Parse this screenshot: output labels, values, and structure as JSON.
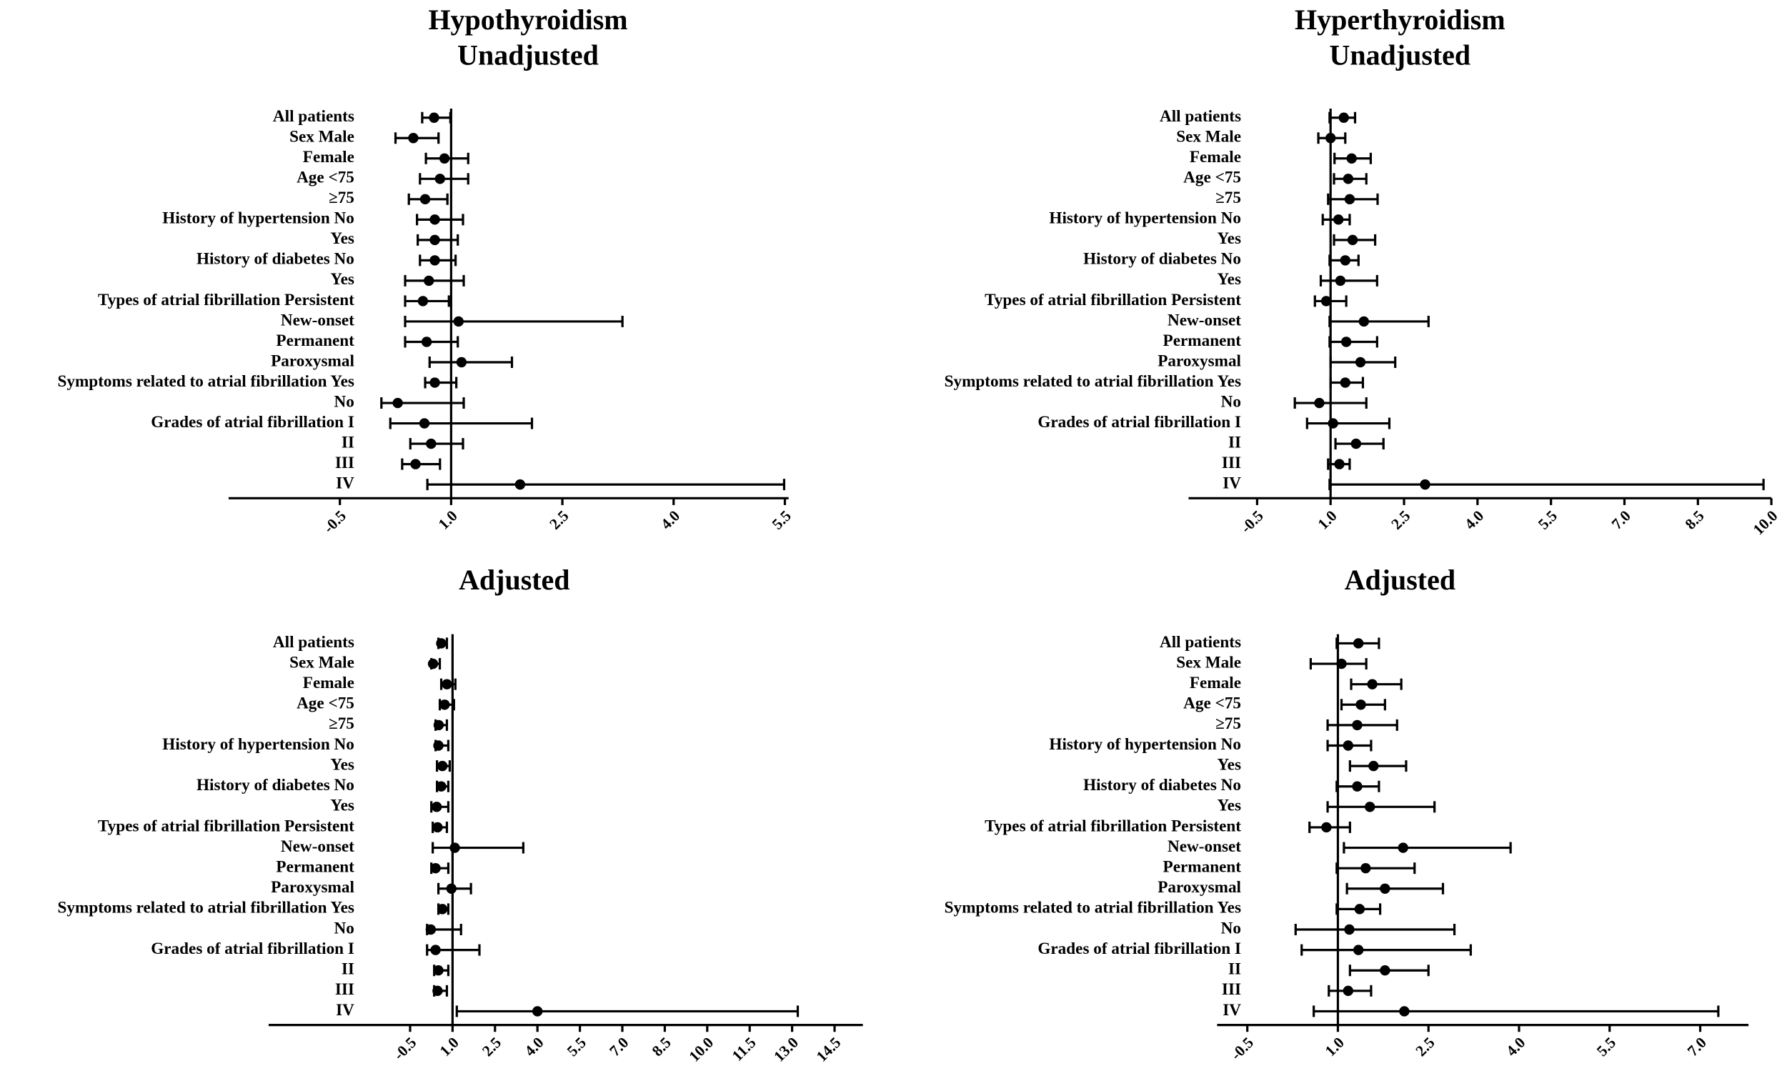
{
  "chart_data": [
    {
      "type": "forest",
      "title": "Hypothyroidism",
      "subtitle": "Unadjusted",
      "color": "#000000",
      "reference_line": 1,
      "categories": [
        "All patients",
        "Sex Male",
        "Female",
        "Age <75",
        "≥75",
        "History of hypertension No",
        "Yes",
        "History of diabetes No",
        "Yes",
        "Types of atrial fibrillation Persistent",
        "New-onset",
        "Permanent",
        "Paroxysmal",
        "Symptoms related to atrial fibrillation Yes",
        "No",
        "Grades of atrial fibrillation I",
        "II",
        "III",
        "IV"
      ],
      "values": [
        0.77,
        0.49,
        0.91,
        0.85,
        0.65,
        0.78,
        0.78,
        0.78,
        0.7,
        0.62,
        1.1,
        0.67,
        1.14,
        0.78,
        0.28,
        0.64,
        0.73,
        0.52,
        1.93
      ],
      "lower": [
        0.61,
        0.25,
        0.66,
        0.58,
        0.43,
        0.54,
        0.55,
        0.58,
        0.38,
        0.38,
        0.38,
        0.38,
        0.71,
        0.65,
        0.06,
        0.18,
        0.45,
        0.34,
        0.68
      ],
      "upper": [
        0.99,
        0.83,
        1.23,
        1.23,
        0.95,
        1.16,
        1.09,
        1.06,
        1.17,
        0.97,
        3.31,
        1.09,
        1.82,
        1.07,
        1.17,
        2.09,
        1.16,
        0.85,
        5.49
      ],
      "xlim": [
        -2,
        5.55
      ],
      "xticks": [
        -0.5,
        {
          "value": 1,
          "label": "1.0"
        },
        2.5,
        {
          "value": 4,
          "label": "4.0"
        },
        5.5
      ]
    },
    {
      "type": "forest",
      "title": "Hyperthyroidism",
      "subtitle": "Unadjusted",
      "color": "#000000",
      "reference_line": 1,
      "categories": [
        "All patients",
        "Sex Male",
        "Female",
        "Age <75",
        "≥75",
        "History of hypertension No",
        "Yes",
        "History of diabetes No",
        "Yes",
        "Types of atrial fibrillation Persistent",
        "New-onset",
        "Permanent",
        "Paroxysmal",
        "Symptoms related to atrial fibrillation Yes",
        "No",
        "Grades of atrial fibrillation I",
        "II",
        "III",
        "IV"
      ],
      "values": [
        1.27,
        1.0,
        1.43,
        1.36,
        1.39,
        1.16,
        1.45,
        1.3,
        1.2,
        0.91,
        1.68,
        1.32,
        1.61,
        1.3,
        0.77,
        1.05,
        1.52,
        1.18,
        2.93
      ],
      "lower": [
        0.98,
        0.75,
        1.08,
        1.07,
        0.95,
        0.84,
        1.07,
        0.98,
        0.8,
        0.68,
        0.98,
        0.98,
        1.0,
        1.0,
        0.27,
        0.52,
        1.1,
        0.95,
        0.98
      ],
      "upper": [
        1.5,
        1.3,
        1.82,
        1.73,
        1.96,
        1.39,
        1.91,
        1.57,
        1.95,
        1.32,
        3.0,
        1.95,
        2.32,
        1.66,
        1.73,
        2.2,
        2.08,
        1.39,
        9.84
      ],
      "xlim": [
        -1.9,
        10
      ],
      "xticks": [
        -0.5,
        {
          "value": 1,
          "label": "1.0"
        },
        2.5,
        {
          "value": 4,
          "label": "4.0"
        },
        5.5,
        {
          "value": 7,
          "label": "7.0"
        },
        8.5,
        {
          "value": 10,
          "label": "10.0"
        }
      ]
    },
    {
      "type": "forest",
      "title": "Adjusted",
      "color": "#000000",
      "reference_line": 1,
      "categories": [
        "All patients",
        "Sex Male",
        "Female",
        "Age <75",
        "≥75",
        "History of hypertension No",
        "Yes",
        "History of diabetes No",
        "Yes",
        "Types of atrial fibrillation Persistent",
        "New-onset",
        "Permanent",
        "Paroxysmal",
        "Symptoms related to atrial fibrillation Yes",
        "No",
        "Grades of atrial fibrillation I",
        "II",
        "III",
        "IV"
      ],
      "values": [
        0.6,
        0.31,
        0.8,
        0.72,
        0.51,
        0.5,
        0.64,
        0.6,
        0.44,
        0.47,
        1.08,
        0.4,
        0.96,
        0.64,
        0.23,
        0.4,
        0.5,
        0.47,
        4.0
      ],
      "lower": [
        0.5,
        0.25,
        0.6,
        0.55,
        0.4,
        0.4,
        0.45,
        0.45,
        0.25,
        0.3,
        0.3,
        0.25,
        0.5,
        0.5,
        0.1,
        0.1,
        0.35,
        0.35,
        1.15
      ],
      "upper": [
        0.8,
        0.55,
        1.1,
        1.05,
        0.8,
        0.85,
        0.9,
        0.85,
        0.85,
        0.8,
        3.5,
        0.85,
        1.65,
        0.85,
        1.3,
        1.95,
        0.85,
        0.8,
        13.2
      ],
      "xlim": [
        -5.5,
        15.5
      ],
      "xticks": [
        -0.5,
        {
          "value": 1,
          "label": "1.0"
        },
        2.5,
        {
          "value": 4,
          "label": "4.0"
        },
        5.5,
        {
          "value": 7,
          "label": "7.0"
        },
        8.5,
        {
          "value": 10,
          "label": "10.0"
        },
        11.5,
        {
          "value": 13,
          "label": "13.0"
        },
        14.5
      ]
    },
    {
      "type": "forest",
      "title": "Adjusted",
      "color": "#000000",
      "reference_line": 1,
      "categories": [
        "All patients",
        "Sex Male",
        "Female",
        "Age <75",
        "≥75",
        "History of hypertension No",
        "Yes",
        "History of diabetes No",
        "Yes",
        "Types of atrial fibrillation Persistent",
        "New-onset",
        "Permanent",
        "Paroxysmal",
        "Symptoms related to atrial fibrillation Yes",
        "No",
        "Grades of atrial fibrillation I",
        "II",
        "III",
        "IV"
      ],
      "values": [
        1.34,
        1.06,
        1.57,
        1.38,
        1.32,
        1.17,
        1.59,
        1.32,
        1.53,
        0.81,
        2.08,
        1.46,
        1.78,
        1.36,
        1.19,
        1.34,
        1.78,
        1.17,
        2.1
      ],
      "lower": [
        0.98,
        0.55,
        1.22,
        1.06,
        0.83,
        0.83,
        1.2,
        0.98,
        0.83,
        0.53,
        1.1,
        0.98,
        1.15,
        0.98,
        0.3,
        0.4,
        1.2,
        0.85,
        0.6
      ],
      "upper": [
        1.68,
        1.47,
        2.05,
        1.78,
        1.98,
        1.55,
        2.13,
        1.68,
        2.6,
        1.2,
        3.86,
        2.27,
        2.74,
        1.7,
        2.93,
        3.2,
        2.5,
        1.55,
        7.3
      ],
      "xlim": [
        -1,
        7.8
      ],
      "xticks": [
        -0.5,
        {
          "value": 1,
          "label": "1.0"
        },
        2.5,
        {
          "value": 4,
          "label": "4.0"
        },
        5.5,
        {
          "value": 7,
          "label": "7.0"
        }
      ]
    }
  ]
}
